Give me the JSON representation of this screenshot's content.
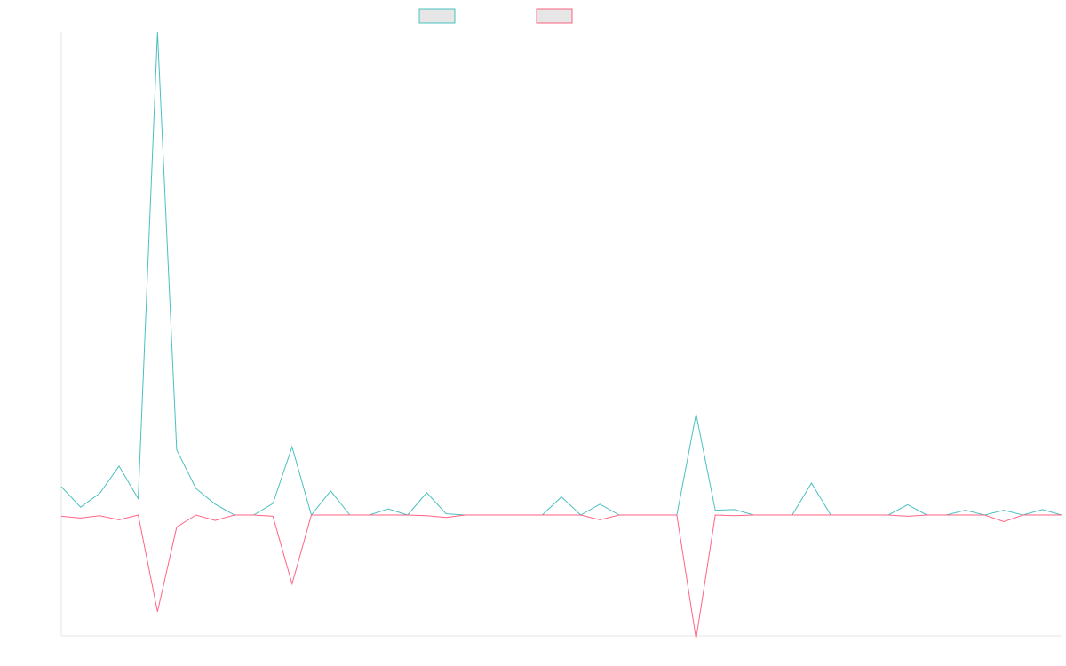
{
  "chart_data": {
    "type": "line",
    "title": "",
    "xlabel": "",
    "ylabel": "",
    "x": [
      0,
      1,
      2,
      3,
      4,
      5,
      6,
      7,
      8,
      9,
      10,
      11,
      12,
      13,
      14,
      15,
      16,
      17,
      18,
      19,
      20,
      21,
      22,
      23,
      24,
      25,
      26,
      27,
      28,
      29,
      30,
      31,
      32,
      33,
      34,
      35,
      36,
      37,
      38,
      39,
      40,
      41,
      42,
      43,
      44,
      45,
      46,
      47,
      48,
      49,
      50,
      51,
      52
    ],
    "ylim": [
      -200,
      800
    ],
    "grid": false,
    "legend_position": "top",
    "series": [
      {
        "name": "",
        "color": "#4bc0c0",
        "values": [
          47,
          13,
          36,
          81,
          27,
          800,
          108,
          44,
          18,
          0,
          0,
          19,
          113,
          0,
          40,
          0,
          0,
          10,
          0,
          37,
          2,
          0,
          0,
          0,
          0,
          0,
          30,
          0,
          18,
          0,
          0,
          0,
          0,
          167,
          8,
          9,
          0,
          0,
          0,
          53,
          0,
          0,
          0,
          0,
          17,
          0,
          0,
          8,
          0,
          8,
          0,
          9,
          0
        ]
      },
      {
        "name": "",
        "color": "#ff6384",
        "values": [
          -2,
          -5,
          -1,
          -8,
          0,
          -160,
          -20,
          0,
          -9,
          0,
          0,
          -2,
          -114,
          0,
          0,
          0,
          0,
          0,
          0,
          -1,
          -4,
          0,
          0,
          0,
          0,
          0,
          0,
          0,
          -8,
          0,
          0,
          0,
          0,
          -205,
          0,
          -1,
          0,
          0,
          0,
          0,
          0,
          0,
          0,
          0,
          -2,
          0,
          0,
          0,
          0,
          -11,
          0,
          0,
          0
        ]
      }
    ]
  }
}
